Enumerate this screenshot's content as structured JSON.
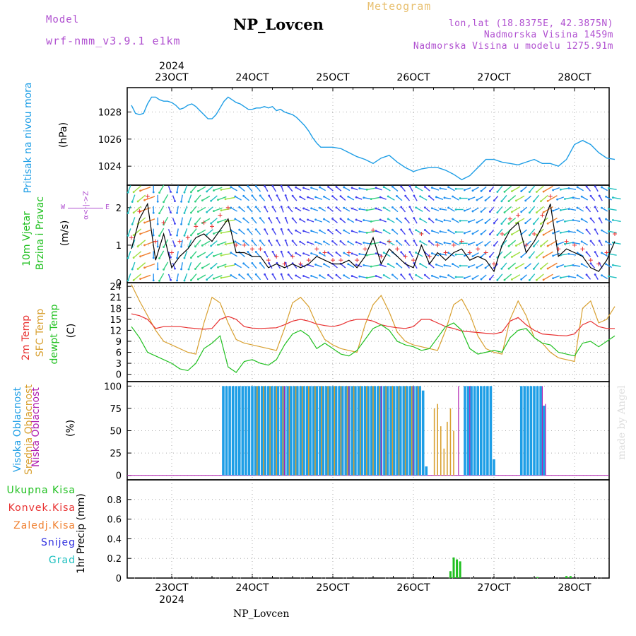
{
  "header": {
    "model_label": "Model",
    "model_name": "wrf-nmm_v3.9.1 e1km",
    "title": "NP_Lovcen",
    "meteogram_label": "Meteogram",
    "lonlat": "lon,lat (18.8375E, 42.3875N)",
    "altitude": "Nadmorska Visina 1459m",
    "model_altitude": "Nadmorska Visina u modelu 1275.91m",
    "footer": "NP_Lovcen",
    "watermark": "made by Angel"
  },
  "colors": {
    "pressure": "#1e9ee6",
    "wind_speed": "#000000",
    "gust": "#e83030",
    "t2m": "#e83030",
    "tsfc": "#d8a030",
    "dewpoint": "#20c020",
    "high_cloud": "#1e9ee6",
    "mid_cloud": "#d8a030",
    "low_cloud": "#b020b0",
    "precip_total": "#20c020",
    "precip_conv": "#e83030",
    "precip_grid": "#f08030",
    "snow": "#3030e0",
    "graupel": "#20c0c0",
    "header_purple": "#b050d0",
    "header_orange": "#e8c070"
  },
  "chart_data": {
    "type": "line",
    "time_axis": {
      "start": "2024-10-22 12:00",
      "end": "2024-10-28 12:00",
      "day_ticks": [
        "23OCT",
        "24OCT",
        "25OCT",
        "26OCT",
        "27OCT",
        "28OCT"
      ],
      "year": "2024"
    },
    "panels": {
      "pressure": {
        "ylabel_line1": "Pritisak na nivou mora",
        "unit": "(hPa)",
        "ylim": [
          1022.6,
          1029.8
        ],
        "yticks": [
          "1024",
          "1026",
          "1028"
        ],
        "x": [
          0,
          0.05,
          0.1,
          0.15,
          0.2,
          0.25,
          0.3,
          0.35,
          0.4,
          0.45,
          0.5,
          0.55,
          0.6,
          0.65,
          0.7,
          0.75,
          0.8,
          0.85,
          0.9,
          0.95,
          1.0,
          1.05,
          1.1,
          1.15,
          1.2,
          1.25,
          1.3,
          1.35,
          1.4,
          1.45,
          1.5,
          1.55,
          1.6,
          1.65,
          1.7,
          1.75,
          1.8,
          1.85,
          1.9,
          1.95,
          2.0,
          2.05,
          2.1,
          2.15,
          2.2,
          2.25,
          2.3,
          2.35,
          2.4,
          2.5,
          2.6,
          2.7,
          2.8,
          2.9,
          3.0,
          3.1,
          3.2,
          3.3,
          3.4,
          3.5,
          3.6,
          3.7,
          3.8,
          3.9,
          4.0,
          4.1,
          4.2,
          4.3,
          4.4,
          4.5,
          4.6,
          4.7,
          4.8,
          4.9,
          5.0,
          5.1,
          5.2,
          5.3,
          5.4,
          5.5,
          5.6,
          5.7,
          5.8,
          5.9,
          6.0
        ],
        "values": [
          1028.5,
          1027.9,
          1027.8,
          1027.9,
          1028.6,
          1029.1,
          1029.1,
          1028.9,
          1028.8,
          1028.8,
          1028.7,
          1028.5,
          1028.2,
          1028.3,
          1028.5,
          1028.6,
          1028.4,
          1028.1,
          1027.8,
          1027.5,
          1027.5,
          1027.8,
          1028.3,
          1028.8,
          1029.1,
          1028.9,
          1028.7,
          1028.6,
          1028.4,
          1028.2,
          1028.2,
          1028.3,
          1028.3,
          1028.4,
          1028.3,
          1028.4,
          1028.1,
          1028.2,
          1028.0,
          1027.9,
          1027.8,
          1027.6,
          1027.3,
          1027.0,
          1026.6,
          1026.1,
          1025.7,
          1025.4,
          1025.4,
          1025.4,
          1025.3,
          1025.0,
          1024.7,
          1024.5,
          1024.2,
          1024.6,
          1024.8,
          1024.3,
          1023.9,
          1023.6,
          1023.8,
          1023.9,
          1023.9,
          1023.7,
          1023.4,
          1023.0,
          1023.3,
          1023.9,
          1024.5,
          1024.5,
          1024.3,
          1024.2,
          1024.1,
          1024.3,
          1024.5,
          1024.2,
          1024.2,
          1024.0,
          1024.5,
          1025.6,
          1025.9,
          1025.6,
          1025.0,
          1024.6,
          1024.5
        ]
      },
      "wind": {
        "ylabel_line1": "10m Vjetar",
        "ylabel_line2": "Brzina i Pravac",
        "unit": "(m/s)",
        "compass_ns": "α<-|->Z",
        "compass_we_w": "W",
        "compass_we_e": "E",
        "ylim": [
          0,
          2.6
        ],
        "yticks": [
          "0",
          "1",
          "2"
        ],
        "x": [
          0,
          0.1,
          0.2,
          0.3,
          0.4,
          0.5,
          0.6,
          0.7,
          0.8,
          0.9,
          1.0,
          1.1,
          1.2,
          1.3,
          1.4,
          1.5,
          1.6,
          1.7,
          1.8,
          1.9,
          2.0,
          2.1,
          2.2,
          2.3,
          2.4,
          2.5,
          2.6,
          2.7,
          2.8,
          2.9,
          3.0,
          3.1,
          3.2,
          3.3,
          3.4,
          3.5,
          3.6,
          3.7,
          3.8,
          3.9,
          4.0,
          4.1,
          4.2,
          4.3,
          4.4,
          4.5,
          4.6,
          4.7,
          4.8,
          4.9,
          5.0,
          5.1,
          5.2,
          5.3,
          5.4,
          5.5,
          5.6,
          5.7,
          5.8,
          5.9,
          6.0
        ],
        "speed": [
          0.9,
          1.7,
          2.1,
          0.6,
          1.3,
          0.4,
          0.7,
          0.9,
          1.2,
          1.3,
          1.1,
          1.4,
          1.7,
          0.8,
          0.8,
          0.7,
          0.7,
          0.4,
          0.5,
          0.4,
          0.5,
          0.4,
          0.5,
          0.7,
          0.6,
          0.5,
          0.5,
          0.6,
          0.4,
          0.7,
          1.2,
          0.5,
          0.9,
          0.7,
          0.5,
          0.4,
          1.0,
          0.5,
          0.8,
          0.6,
          0.8,
          0.9,
          0.6,
          0.7,
          0.6,
          0.3,
          1.0,
          1.4,
          1.6,
          0.8,
          1.1,
          1.5,
          2.1,
          0.7,
          0.9,
          0.8,
          0.7,
          0.4,
          0.3,
          0.6,
          1.1
        ],
        "gust": [
          1.2,
          1.9,
          2.3,
          1.1,
          1.6,
          0.8,
          1.1,
          1.2,
          1.5,
          1.6,
          1.5,
          1.8,
          2.0,
          1.0,
          1.0,
          0.9,
          0.9,
          0.6,
          0.7,
          0.5,
          0.7,
          0.5,
          0.6,
          0.9,
          0.8,
          0.6,
          0.6,
          0.8,
          0.6,
          0.9,
          1.4,
          0.7,
          1.1,
          0.9,
          0.7,
          0.6,
          1.3,
          0.7,
          1.0,
          0.8,
          1.0,
          1.1,
          0.8,
          0.9,
          0.8,
          0.5,
          1.3,
          1.7,
          1.8,
          1.0,
          1.3,
          1.8,
          2.3,
          0.9,
          1.1,
          1.0,
          0.9,
          0.6,
          0.5,
          0.8,
          1.3
        ],
        "direction_deg": [
          200,
          230,
          250,
          180,
          210,
          160,
          190,
          200,
          220,
          240,
          230,
          250,
          260,
          300,
          310,
          320,
          320,
          330,
          330,
          340,
          320,
          300,
          290,
          290,
          300,
          310,
          310,
          300,
          290,
          280,
          260,
          290,
          300,
          310,
          320,
          330,
          300,
          310,
          290,
          280,
          300,
          270,
          250,
          240,
          230,
          220,
          220,
          230,
          240,
          230,
          220,
          230,
          240,
          250,
          260,
          280,
          300,
          320,
          330,
          300,
          280
        ]
      },
      "temperature": {
        "label_t2m": "2m Temp",
        "label_tsfc": "SFC Temp",
        "label_td": "dewpt Temp",
        "unit": "(C)",
        "ylim": [
          -2,
          25
        ],
        "yticks": [
          "0",
          "3",
          "6",
          "9",
          "12",
          "15",
          "18",
          "21",
          "24"
        ],
        "x": [
          0,
          0.1,
          0.2,
          0.3,
          0.4,
          0.5,
          0.6,
          0.7,
          0.8,
          0.9,
          1.0,
          1.1,
          1.2,
          1.3,
          1.4,
          1.5,
          1.6,
          1.7,
          1.8,
          1.9,
          2.0,
          2.1,
          2.2,
          2.3,
          2.4,
          2.5,
          2.6,
          2.7,
          2.8,
          2.9,
          3.0,
          3.1,
          3.2,
          3.3,
          3.4,
          3.5,
          3.6,
          3.7,
          3.8,
          3.9,
          4.0,
          4.1,
          4.2,
          4.3,
          4.4,
          4.5,
          4.6,
          4.7,
          4.8,
          4.9,
          5.0,
          5.1,
          5.2,
          5.3,
          5.4,
          5.5,
          5.6,
          5.7,
          5.8,
          5.9,
          6.0
        ],
        "t2m": [
          16.5,
          16.0,
          15.0,
          12.5,
          13.0,
          13.0,
          13.0,
          12.7,
          12.5,
          12.3,
          12.5,
          15.0,
          15.8,
          15.0,
          13.0,
          12.6,
          12.5,
          12.6,
          12.7,
          13.5,
          14.5,
          15.0,
          14.5,
          13.7,
          13.3,
          13.0,
          13.5,
          14.5,
          15.0,
          15.0,
          14.5,
          13.5,
          13.0,
          12.7,
          12.5,
          13.0,
          15.0,
          15.0,
          14.0,
          13.0,
          12.5,
          11.8,
          11.6,
          11.4,
          11.2,
          11.0,
          11.5,
          14.5,
          15.5,
          13.5,
          12.0,
          11.0,
          10.8,
          10.6,
          10.5,
          11.0,
          13.5,
          14.5,
          13.0,
          12.5,
          12.5
        ],
        "tsfc": [
          24.5,
          20.0,
          16.0,
          12.0,
          9.0,
          8.0,
          7.0,
          6.0,
          5.5,
          14.0,
          21.0,
          19.5,
          14.0,
          9.5,
          8.5,
          8.0,
          7.5,
          7.0,
          6.5,
          12.5,
          19.5,
          21.0,
          18.5,
          13.5,
          9.5,
          8.0,
          7.0,
          6.5,
          6.0,
          13.5,
          19.0,
          21.5,
          17.0,
          11.5,
          9.0,
          8.0,
          7.5,
          7.0,
          6.5,
          12.0,
          19.0,
          20.5,
          16.5,
          10.5,
          7.0,
          6.0,
          5.5,
          15.0,
          20.0,
          16.0,
          10.0,
          8.5,
          6.0,
          4.5,
          4.0,
          3.5,
          18.0,
          20.0,
          14.0,
          15.0,
          18.5
        ],
        "dewpoint": [
          13.0,
          10.0,
          6.0,
          5.0,
          4.0,
          3.0,
          1.5,
          1.0,
          3.0,
          7.0,
          8.5,
          10.5,
          2.0,
          0.5,
          3.5,
          4.0,
          3.0,
          2.5,
          4.0,
          8.0,
          11.0,
          12.0,
          10.5,
          7.0,
          8.5,
          7.0,
          5.5,
          5.0,
          6.5,
          9.5,
          12.5,
          13.5,
          12.0,
          9.0,
          8.0,
          7.5,
          6.5,
          7.0,
          10.0,
          13.0,
          14.0,
          12.0,
          7.0,
          5.5,
          6.0,
          6.5,
          6.0,
          10.0,
          12.0,
          12.5,
          10.0,
          8.5,
          8.0,
          6.0,
          5.5,
          5.0,
          8.5,
          9.0,
          7.5,
          9.0,
          10.5
        ]
      },
      "cloud": {
        "label_high": "Visoka Oblacnost",
        "label_mid": "Srednja Oblacnost",
        "label_low": "Niska Oblacnost",
        "unit": "(%)",
        "ylim": [
          -5,
          105
        ],
        "yticks": [
          "0",
          "25",
          "50",
          "75",
          "100"
        ],
        "high": {
          "x": [
            1.14,
            1.18,
            1.22,
            1.26,
            1.3,
            1.34,
            1.38,
            1.42,
            1.46,
            1.5,
            1.54,
            1.58,
            1.62,
            1.66,
            1.7,
            1.74,
            1.78,
            1.82,
            1.86,
            1.9,
            1.94,
            1.98,
            2.02,
            2.06,
            2.1,
            2.14,
            2.18,
            2.22,
            2.26,
            2.3,
            2.34,
            2.38,
            2.42,
            2.46,
            2.5,
            2.54,
            2.58,
            2.62,
            2.66,
            2.7,
            2.74,
            2.78,
            2.82,
            2.86,
            2.9,
            2.94,
            2.98,
            3.02,
            3.06,
            3.1,
            3.14,
            3.18,
            3.22,
            3.26,
            3.3,
            3.34,
            3.38,
            3.42,
            3.46,
            3.5,
            3.54,
            3.58,
            3.62,
            3.66,
            3.7,
            4.14,
            4.18,
            4.22,
            4.26,
            4.3,
            4.34,
            4.38,
            4.42,
            4.46,
            4.5,
            4.84,
            4.88,
            4.92,
            4.96,
            5.0,
            5.04,
            5.08,
            5.12
          ],
          "values": [
            100,
            100,
            100,
            100,
            100,
            100,
            100,
            100,
            100,
            100,
            100,
            100,
            100,
            100,
            100,
            100,
            100,
            100,
            100,
            100,
            100,
            100,
            100,
            100,
            100,
            100,
            100,
            100,
            100,
            100,
            100,
            100,
            100,
            100,
            100,
            100,
            100,
            100,
            100,
            100,
            100,
            100,
            100,
            100,
            100,
            100,
            100,
            100,
            100,
            100,
            100,
            100,
            100,
            100,
            100,
            100,
            100,
            100,
            100,
            100,
            100,
            100,
            95,
            10,
            0,
            100,
            100,
            100,
            100,
            100,
            100,
            100,
            100,
            100,
            18,
            100,
            100,
            100,
            100,
            100,
            100,
            100,
            78
          ]
        },
        "mid": {
          "x": [
            1.56,
            1.64,
            1.72,
            1.8,
            1.88,
            1.96,
            2.04,
            2.12,
            2.2,
            2.28,
            2.36,
            2.44,
            2.52,
            2.6,
            2.68,
            2.76,
            2.84,
            2.92,
            3.0,
            3.08,
            3.16,
            3.24,
            3.32,
            3.4,
            3.48,
            3.56,
            3.76,
            3.8,
            3.84,
            3.88,
            3.92,
            3.96,
            4.0
          ],
          "values": [
            100,
            100,
            100,
            100,
            100,
            100,
            100,
            100,
            100,
            100,
            100,
            100,
            100,
            100,
            100,
            100,
            100,
            100,
            100,
            100,
            100,
            100,
            100,
            100,
            100,
            100,
            75,
            80,
            55,
            30,
            60,
            75,
            50
          ]
        },
        "low": {
          "x": [
            1.9,
            2.7,
            3.1,
            3.5,
            4.06,
            4.2,
            5.1,
            5.14
          ],
          "values": [
            100,
            100,
            100,
            100,
            100,
            100,
            100,
            80
          ]
        }
      },
      "precip": {
        "legend_total": "Ukupna Kisa",
        "legend_conv": "Konvek.Kisa",
        "legend_grid": "Zaledj.Kisa",
        "legend_snow": "Snijeg",
        "legend_graupel": "Grad",
        "ylabel": "1hr Precip (mm)",
        "ylim": [
          0,
          1.0
        ],
        "yticks": [
          "0",
          "0.2",
          "0.4",
          "0.6",
          "0.8"
        ],
        "total": {
          "x": [
            3.96,
            4.0,
            4.04,
            4.08,
            5.04,
            5.4,
            5.45
          ],
          "values": [
            0.07,
            0.21,
            0.19,
            0.17,
            0.01,
            0.02,
            0.02
          ]
        }
      }
    }
  }
}
